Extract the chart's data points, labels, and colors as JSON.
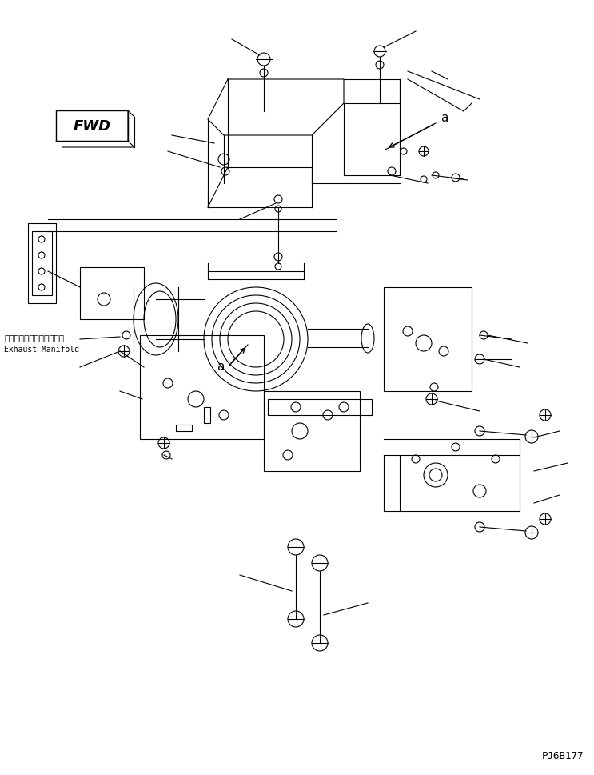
{
  "bg_color": "#ffffff",
  "line_color": "#000000",
  "fig_width": 7.43,
  "fig_height": 9.7,
  "dpi": 100,
  "fwd_text": "FWD",
  "exhaust_manifold_jp": "エキゾーストマニホールド",
  "exhaust_manifold_en": "Exhaust Manifold",
  "part_code": "PJ6B177"
}
